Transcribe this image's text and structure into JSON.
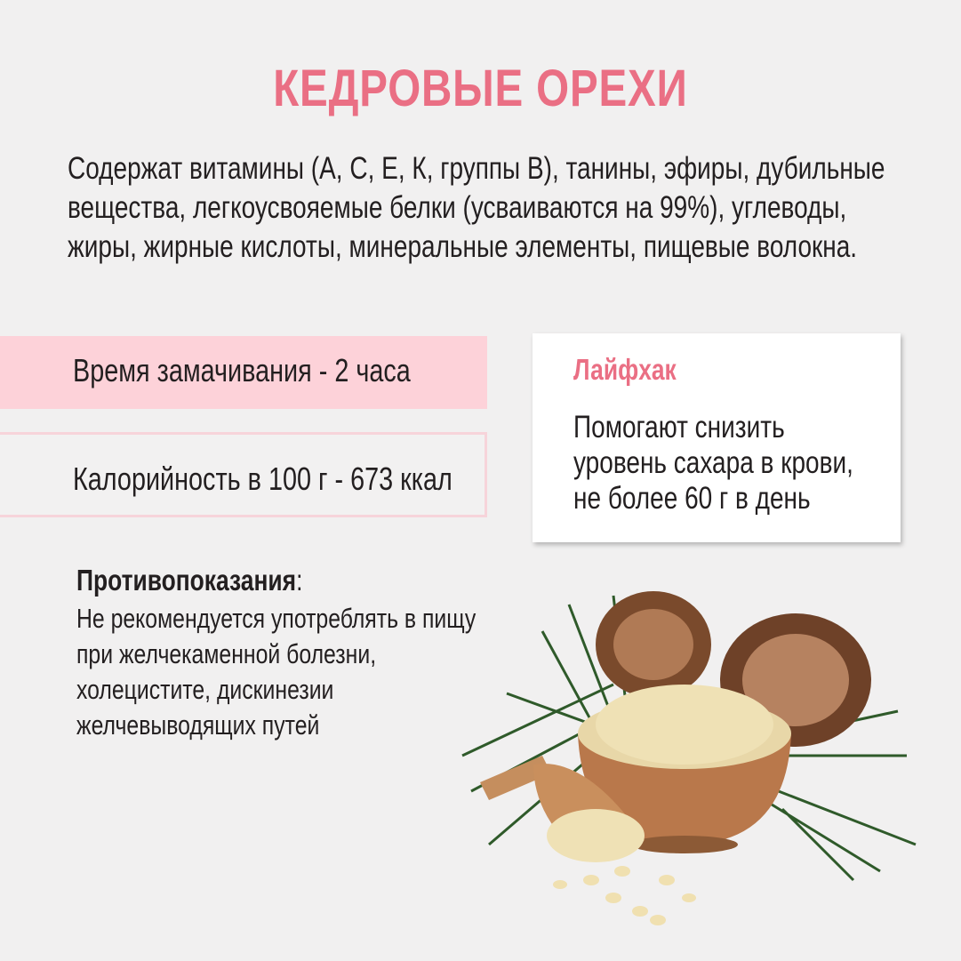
{
  "title": "КЕДРОВЫЕ ОРЕХИ",
  "intro_lines": [
    "Содержат витамины (А, С, Е, К, группы В), танины, эфиры, дубильные",
    "вещества, легкоусвояемые белки (усваиваются на 99%), углеводы,",
    "жиры, жирные кислоты, минеральные элементы, пищевые волокна."
  ],
  "soak_time": "Время замачивания - 2 часа",
  "calories": "Калорийность  в 100 г - 673 ккал",
  "tip": {
    "title": "Лайфхак",
    "lines": [
      "Помогают снизить",
      "уровень сахара в крови,",
      "не более 60 г в день"
    ]
  },
  "contraindications": {
    "title": "Противопоказания",
    "colon": ":",
    "lines": [
      "Не рекомендуется употреблять в пищу",
      "при желчекаменной болезни,",
      "холецистите, дискинезии",
      "желчевыводящих путей"
    ]
  },
  "colors": {
    "accent": "#ea6f84",
    "soak_bg": "#fdd2d9",
    "background": "#f1f0f0"
  }
}
